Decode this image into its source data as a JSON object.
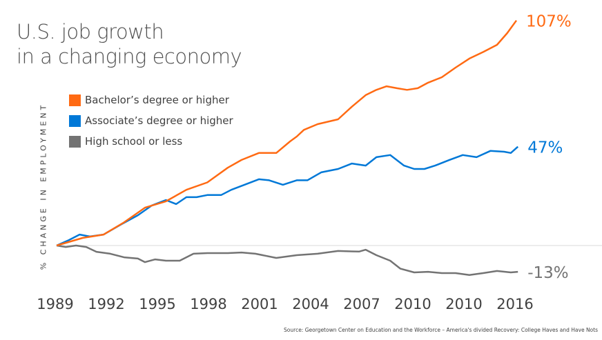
{
  "title_line1": "U.S. job growth",
  "title_line2": "in a changing economy",
  "source": "Source: Georgetown Center on Education and the Workforce – America's divided Recovery: College Haves and Have Nots",
  "chart_data": {
    "type": "line",
    "title": "U.S. job growth in a changing economy",
    "ylabel": "% CHANGE IN EMPLOYMENT",
    "xlabel": "",
    "x_ticks": [
      "1989",
      "1992",
      "1995",
      "1998",
      "2001",
      "2004",
      "2007",
      "2010",
      "2010",
      "2016"
    ],
    "x_note": "x values are positions along the tick sequence (0 = first tick, 9 = last tick)",
    "ylim": [
      -20,
      110
    ],
    "grid": false,
    "legend": "top-left",
    "series": [
      {
        "name": "Bachelor’s degree or higher",
        "color": "#ff6a13",
        "end_label": "107%",
        "x": [
          0,
          0.51,
          0.92,
          1.32,
          1.73,
          2.14,
          2.54,
          2.95,
          3.35,
          3.62,
          3.96,
          4.3,
          4.57,
          4.7,
          4.84,
          5.11,
          5.51,
          5.78,
          6.05,
          6.26,
          6.46,
          6.66,
          6.86,
          7.07,
          7.27,
          7.54,
          7.81,
          8.08,
          8.35,
          8.62,
          8.82,
          9.0
        ],
        "y": [
          0,
          3.6,
          5.2,
          11,
          18,
          21,
          26.5,
          30,
          37,
          40.7,
          44,
          44,
          49.5,
          51.8,
          55,
          57.7,
          60,
          66,
          71.5,
          74,
          75.7,
          74.8,
          74,
          74.8,
          77.4,
          80,
          84.6,
          88.9,
          92,
          95.4,
          101,
          107
        ]
      },
      {
        "name": "Associate’s degree or higher",
        "color": "#0078d7",
        "end_label": "47%",
        "x": [
          0,
          0.24,
          0.45,
          0.65,
          0.92,
          1.26,
          1.59,
          1.86,
          2.14,
          2.34,
          2.54,
          2.74,
          2.95,
          3.22,
          3.42,
          3.69,
          3.96,
          4.16,
          4.43,
          4.7,
          4.91,
          5.18,
          5.51,
          5.78,
          6.05,
          6.26,
          6.53,
          6.8,
          7.0,
          7.2,
          7.41,
          7.68,
          7.95,
          8.22,
          8.49,
          8.76,
          8.89,
          9.03
        ],
        "y": [
          0,
          2.6,
          5.2,
          4.3,
          5.2,
          10,
          14.4,
          19,
          21.6,
          19.7,
          23,
          23,
          24,
          24,
          26.5,
          29,
          31.5,
          31,
          28.9,
          31,
          31,
          34.8,
          36.4,
          39,
          38,
          42,
          43,
          38,
          36.4,
          36.4,
          38,
          40.6,
          43,
          42,
          45,
          44.6,
          44,
          47
        ]
      },
      {
        "name": "High school or less",
        "color": "#737373",
        "end_label": "-13%",
        "x": [
          0,
          0.18,
          0.38,
          0.58,
          0.78,
          1.05,
          1.32,
          1.59,
          1.73,
          1.93,
          2.14,
          2.41,
          2.68,
          2.95,
          3.35,
          3.62,
          3.89,
          4.3,
          4.7,
          5.11,
          5.51,
          5.92,
          6.05,
          6.26,
          6.53,
          6.73,
          7.0,
          7.27,
          7.54,
          7.81,
          8.08,
          8.35,
          8.62,
          8.89,
          9.03
        ],
        "y": [
          0,
          -0.7,
          0,
          -0.7,
          -3,
          -3.9,
          -5.6,
          -6.2,
          -7.9,
          -6.6,
          -7.2,
          -7.2,
          -3.9,
          -3.6,
          -3.6,
          -3.3,
          -3.9,
          -5.9,
          -4.6,
          -3.9,
          -2.6,
          -2.9,
          -2,
          -4.6,
          -7.2,
          -11,
          -12.8,
          -12.5,
          -13.1,
          -13.1,
          -14,
          -13.1,
          -12.1,
          -12.8,
          -12.5
        ]
      }
    ]
  }
}
